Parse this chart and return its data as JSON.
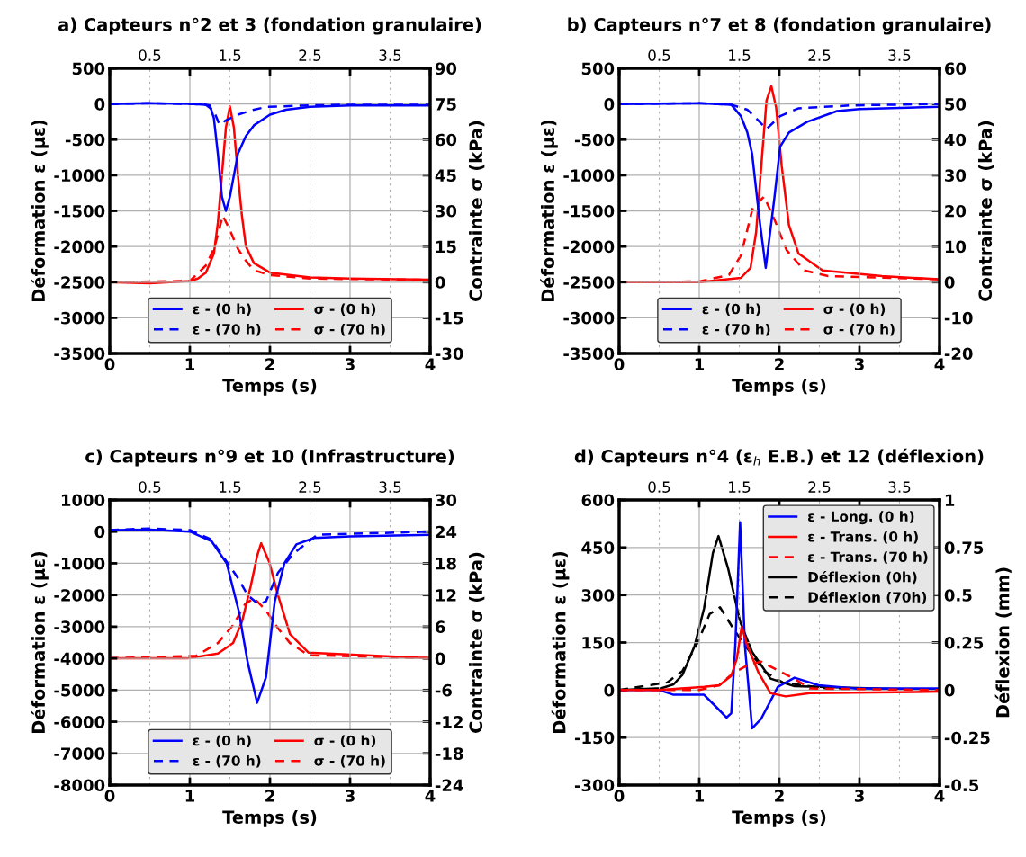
{
  "chart_data": [
    {
      "type": "line",
      "title": "a) Capteurs n°2 et 3 (fondation granulaire)",
      "xlabel": "Temps (s)",
      "ylabel": "Déformation ε (µε)",
      "y2label": "Contrainte σ (kPa)",
      "xlim": [
        0,
        4
      ],
      "xticks": [
        0,
        1,
        2,
        3,
        4
      ],
      "x2lim": [
        0,
        4
      ],
      "x2ticks": [
        0.5,
        1.5,
        2.5,
        3.5
      ],
      "ylim": [
        -3500,
        500
      ],
      "yticks": [
        -3500,
        -3000,
        -2500,
        -2000,
        -1500,
        -1000,
        -500,
        0,
        500
      ],
      "y2lim": [
        -30,
        90
      ],
      "y2ticks": [
        -30,
        -15,
        0,
        15,
        30,
        45,
        60,
        75,
        90
      ],
      "grid": true,
      "legend": "bottom",
      "series": [
        {
          "name": "ε - (0 h)",
          "color": "#0000ff",
          "line_style": "solid",
          "x": [
            0,
            0.5,
            1.0,
            1.2,
            1.25,
            1.3,
            1.35,
            1.4,
            1.45,
            1.5,
            1.55,
            1.6,
            1.7,
            1.8,
            2.0,
            2.2,
            2.5,
            3.0,
            4.0
          ],
          "values": [
            0,
            10,
            0,
            -10,
            -20,
            -200,
            -700,
            -1300,
            -1500,
            -1300,
            -1000,
            -700,
            -450,
            -300,
            -150,
            -80,
            -40,
            -20,
            -20
          ]
        },
        {
          "name": "ε - (70 h)",
          "color": "#0000ff",
          "line_style": "dashed",
          "axis": "y",
          "x": [
            0,
            0.5,
            1.0,
            1.2,
            1.3,
            1.37,
            1.45,
            1.6,
            1.8,
            1.96,
            2.5,
            3.0,
            4.0
          ],
          "values": [
            0,
            10,
            0,
            -10,
            -100,
            -290,
            -230,
            -150,
            -80,
            -40,
            -20,
            -10,
            -10
          ]
        },
        {
          "name": "σ - (0 h)",
          "color": "#ff0000",
          "line_style": "solid",
          "axis": "y2",
          "x": [
            0,
            0.5,
            1.0,
            1.1,
            1.2,
            1.3,
            1.35,
            1.4,
            1.45,
            1.5,
            1.55,
            1.6,
            1.65,
            1.7,
            1.8,
            2.0,
            2.5,
            3.0,
            4.0
          ],
          "values": [
            0,
            -0.5,
            0.5,
            1.5,
            4,
            12,
            25,
            45,
            65,
            74,
            65,
            45,
            28,
            15,
            8,
            4,
            2,
            1.5,
            1
          ]
        },
        {
          "name": "σ - (70 h)",
          "color": "#ff0000",
          "line_style": "dashed",
          "axis": "y2",
          "x": [
            0,
            1.0,
            1.2,
            1.3,
            1.35,
            1.41,
            1.5,
            1.6,
            1.7,
            1.8,
            2.0,
            2.5,
            4.0
          ],
          "values": [
            0,
            0.5,
            7,
            14,
            20,
            28,
            22,
            14,
            9,
            5,
            3,
            1.5,
            1
          ]
        }
      ]
    },
    {
      "type": "line",
      "title": "b) Capteurs n°7 et 8 (fondation granulaire)",
      "xlabel": "Temps (s)",
      "ylabel": "Déformation ε (µε)",
      "y2label": "Contrainte σ (kPa)",
      "xlim": [
        0,
        4
      ],
      "xticks": [
        0,
        1,
        2,
        3,
        4
      ],
      "x2lim": [
        0,
        4
      ],
      "x2ticks": [
        0.5,
        1.5,
        2.5,
        3.5
      ],
      "ylim": [
        -3500,
        500
      ],
      "yticks": [
        -3500,
        -3000,
        -2500,
        -2000,
        -1500,
        -1000,
        -500,
        0,
        500
      ],
      "y2lim": [
        -20,
        60
      ],
      "y2ticks": [
        -20,
        -10,
        0,
        10,
        20,
        30,
        40,
        50,
        60
      ],
      "grid": true,
      "legend": "bottom",
      "series": [
        {
          "name": "ε - (0 h)",
          "color": "#0000ff",
          "line_style": "solid",
          "x": [
            0,
            1.0,
            1.4,
            1.52,
            1.6,
            1.66,
            1.75,
            1.83,
            1.94,
            2.01,
            2.12,
            2.35,
            2.72,
            3.0,
            4.0
          ],
          "values": [
            0,
            10,
            -10,
            -170,
            -400,
            -700,
            -1600,
            -2300,
            -1300,
            -600,
            -400,
            -250,
            -100,
            -70,
            -40
          ]
        },
        {
          "name": "ε - (70 h)",
          "color": "#0000ff",
          "line_style": "dashed",
          "x": [
            0,
            1.0,
            1.4,
            1.6,
            1.71,
            1.84,
            2.01,
            2.24,
            2.9,
            4.0
          ],
          "values": [
            0,
            10,
            -10,
            -80,
            -200,
            -350,
            -170,
            -60,
            -20,
            0
          ]
        },
        {
          "name": "σ - (0 h)",
          "color": "#ff0000",
          "line_style": "solid",
          "axis": "y2",
          "x": [
            0,
            1.0,
            1.52,
            1.64,
            1.71,
            1.79,
            1.84,
            1.9,
            1.96,
            2.03,
            2.12,
            2.24,
            2.54,
            3.28,
            4.0
          ],
          "values": [
            0,
            0,
            1.2,
            4,
            14,
            37,
            51,
            55,
            49,
            32.5,
            16,
            8,
            3.3,
            1.7,
            0.8
          ]
        },
        {
          "name": "σ - (70 h)",
          "color": "#ff0000",
          "line_style": "dashed",
          "axis": "y2",
          "x": [
            0,
            1.0,
            1.37,
            1.52,
            1.67,
            1.81,
            1.94,
            2.09,
            2.31,
            2.61,
            4.0
          ],
          "values": [
            0,
            0.2,
            2,
            7.5,
            21,
            24,
            17.5,
            9,
            3.3,
            1.7,
            0.8
          ]
        }
      ]
    },
    {
      "type": "line",
      "title": "c) Capteurs n°9 et 10 (Infrastructure)",
      "xlabel": "Temps (s)",
      "ylabel": "Déformation ε (µε)",
      "y2label": "Contrainte σ (kPa)",
      "xlim": [
        0,
        4
      ],
      "xticks": [
        0,
        1,
        2,
        3,
        4
      ],
      "x2lim": [
        0,
        4
      ],
      "x2ticks": [
        0.5,
        1.5,
        2.5,
        3.5
      ],
      "ylim": [
        -8000,
        1000
      ],
      "yticks": [
        -8000,
        -7000,
        -6000,
        -5000,
        -4000,
        -3000,
        -2000,
        -1000,
        0,
        1000
      ],
      "y2lim": [
        -24,
        30
      ],
      "y2ticks": [
        -24,
        -18,
        -12,
        -6,
        0,
        6,
        12,
        18,
        24,
        30
      ],
      "grid": true,
      "legend": "bottom",
      "series": [
        {
          "name": "ε - (0 h)",
          "color": "#0000ff",
          "line_style": "solid",
          "x": [
            0,
            0.5,
            1.0,
            1.27,
            1.46,
            1.61,
            1.72,
            1.84,
            1.95,
            2.06,
            2.18,
            2.33,
            2.55,
            3.0,
            4.0
          ],
          "values": [
            50,
            60,
            0,
            -300,
            -1000,
            -2500,
            -4100,
            -5400,
            -4600,
            -2200,
            -1000,
            -400,
            -200,
            -150,
            -100
          ]
        },
        {
          "name": "ε - (70 h)",
          "color": "#0000ff",
          "line_style": "dashed",
          "x": [
            0,
            0.5,
            1.0,
            1.27,
            1.46,
            1.61,
            1.72,
            1.86,
            1.95,
            2.1,
            2.29,
            2.59,
            4.0
          ],
          "values": [
            50,
            100,
            50,
            -250,
            -950,
            -1500,
            -2000,
            -2300,
            -2200,
            -1300,
            -700,
            -100,
            0
          ]
        },
        {
          "name": "σ - (0 h)",
          "color": "#ff0000",
          "line_style": "solid",
          "axis": "y2",
          "x": [
            0,
            0.97,
            1.35,
            1.54,
            1.65,
            1.76,
            1.84,
            1.89,
            1.99,
            2.1,
            2.25,
            2.48,
            4.0
          ],
          "values": [
            0,
            0,
            0.9,
            2.9,
            6.9,
            13.7,
            19.4,
            21.8,
            18.3,
            12,
            4.6,
            1.1,
            0
          ]
        },
        {
          "name": "σ - (70 h)",
          "color": "#ff0000",
          "line_style": "dashed",
          "axis": "y2",
          "x": [
            0,
            1.08,
            1.35,
            1.54,
            1.69,
            1.8,
            1.95,
            2.1,
            2.25,
            2.48,
            4.0
          ],
          "values": [
            0,
            0.5,
            2.9,
            6.3,
            10.3,
            11.4,
            9.1,
            5.7,
            2.9,
            0.6,
            0
          ]
        }
      ]
    },
    {
      "type": "line",
      "title": "d) Capteurs n°4 (ε$_{h}$ E.B.) et 12 (déflexion)",
      "xlabel": "Temps (s)",
      "ylabel": "Déformation ε (µε)",
      "y2label": "Déflexion (mm)",
      "xlim": [
        0,
        4
      ],
      "xticks": [
        0,
        1,
        2,
        3,
        4
      ],
      "x2lim": [
        0,
        4
      ],
      "x2ticks": [
        0.5,
        1.5,
        2.5,
        3.5
      ],
      "ylim": [
        -300,
        600
      ],
      "yticks": [
        -300,
        -150,
        0,
        150,
        300,
        450,
        600
      ],
      "y2lim": [
        -0.5,
        1
      ],
      "y2ticks": [
        -0.5,
        -0.25,
        0,
        0.25,
        0.5,
        0.75,
        1
      ],
      "grid": true,
      "legend": "top right",
      "series": [
        {
          "name": "ε - Long. (0 h)",
          "color": "#0000ff",
          "line_style": "solid",
          "x": [
            0,
            0.5,
            0.68,
            1.06,
            1.21,
            1.34,
            1.4,
            1.45,
            1.51,
            1.57,
            1.66,
            1.77,
            1.89,
            1.98,
            2.19,
            2.49,
            2.94,
            4.0
          ],
          "values": [
            0,
            0,
            -15,
            -15,
            -53,
            -87,
            -73,
            140,
            530,
            140,
            -121,
            -92,
            -34,
            10,
            39,
            15,
            5,
            5
          ]
        },
        {
          "name": "ε - Trans. (0 h)",
          "color": "#ff0000",
          "line_style": "solid",
          "x": [
            0,
            0.5,
            1.06,
            1.25,
            1.4,
            1.47,
            1.53,
            1.6,
            1.74,
            1.89,
            2.08,
            2.38,
            4.0
          ],
          "values": [
            0,
            0,
            10,
            15,
            45,
            100,
            200,
            140,
            55,
            -10,
            -20,
            -10,
            -5
          ]
        },
        {
          "name": "ε - Trans. (70 h)",
          "color": "#ff0000",
          "line_style": "dashed",
          "x": [
            0,
            1.0,
            1.25,
            1.43,
            1.58,
            1.77,
            1.96,
            2.19,
            2.38,
            4.0
          ],
          "values": [
            0,
            0,
            15,
            55,
            75,
            90,
            65,
            35,
            5,
            0
          ]
        },
        {
          "name": "Déflexion (0h)",
          "color": "#000000",
          "line_style": "solid",
          "axis": "y2",
          "x": [
            0,
            0.53,
            0.68,
            0.79,
            0.94,
            1.06,
            1.17,
            1.24,
            1.36,
            1.51,
            1.66,
            1.89,
            2.19,
            4.0
          ],
          "values": [
            0,
            0.01,
            0.03,
            0.08,
            0.23,
            0.43,
            0.72,
            0.81,
            0.64,
            0.36,
            0.2,
            0.06,
            0.02,
            0
          ]
        },
        {
          "name": "Déflexion (70h)",
          "color": "#000000",
          "line_style": "dashed",
          "axis": "y2",
          "x": [
            0,
            0.6,
            0.79,
            0.98,
            1.13,
            1.26,
            1.43,
            1.58,
            1.81,
            2.04,
            2.57,
            4.0
          ],
          "values": [
            0,
            0.04,
            0.1,
            0.25,
            0.4,
            0.435,
            0.32,
            0.23,
            0.1,
            0.04,
            0.01,
            0
          ]
        }
      ]
    }
  ]
}
